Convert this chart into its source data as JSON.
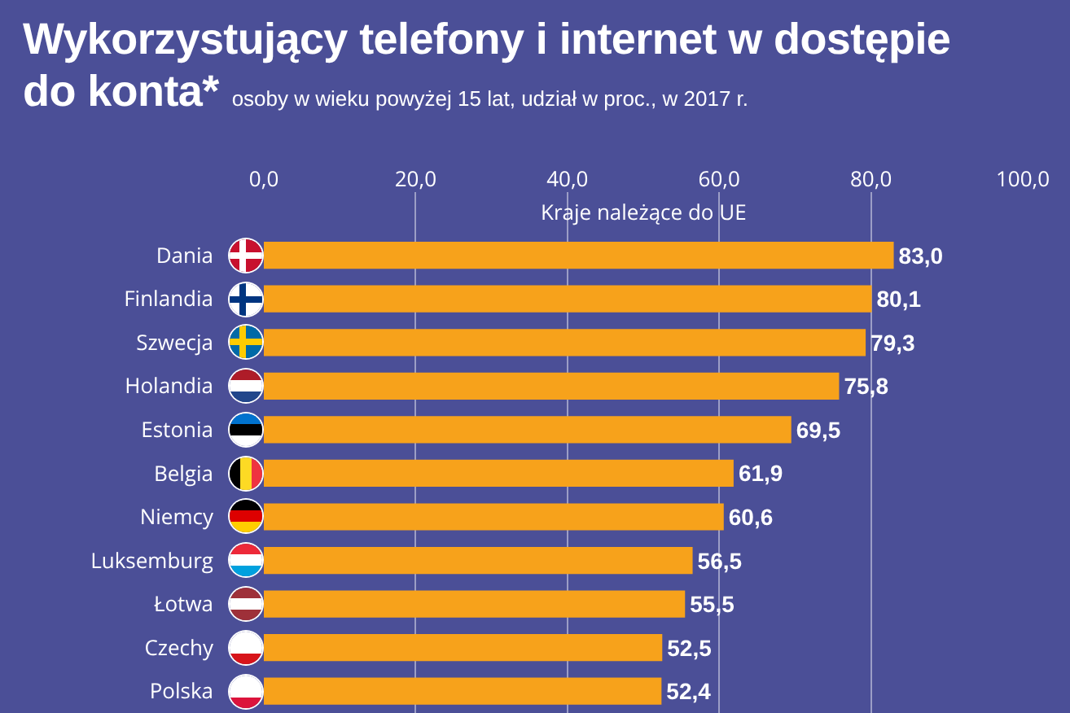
{
  "chart_data": {
    "type": "bar",
    "orientation": "horizontal",
    "title": "Wykorzystujący telefony i internet w dostępie do konta*",
    "subtitle": "osoby w wieku powyżej 15 lat, udział w proc., w 2017 r.",
    "annotations": [
      "Kraje należące do UE"
    ],
    "categories": [
      "Dania",
      "Finlandia",
      "Szwecja",
      "Holandia",
      "Estonia",
      "Belgia",
      "Niemcy",
      "Luksemburg",
      "Łotwa",
      "Czechy",
      "Polska"
    ],
    "values": [
      83.0,
      80.1,
      79.3,
      75.8,
      69.5,
      61.9,
      60.6,
      56.5,
      55.5,
      52.5,
      52.4
    ],
    "value_labels": [
      "83,0",
      "80,1",
      "79,3",
      "75,8",
      "69,5",
      "61,9",
      "60,6",
      "56,5",
      "55,5",
      "52,5",
      "52,4"
    ],
    "color": "#f7a21b",
    "xlim": [
      0,
      100
    ],
    "xticks": [
      {
        "value": 0,
        "label": "0,0"
      },
      {
        "value": 20,
        "label": "20,0"
      },
      {
        "value": 40,
        "label": "40,0"
      },
      {
        "value": 60,
        "label": "60,0"
      },
      {
        "value": 80,
        "label": "80,0"
      },
      {
        "value": 100,
        "label": "100,0"
      }
    ],
    "grid": "x",
    "legend": false
  }
}
